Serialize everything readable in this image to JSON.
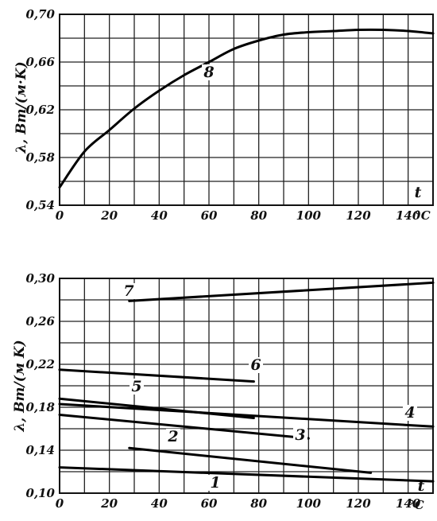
{
  "chart_data": [
    {
      "type": "line",
      "xlabel": "t",
      "xunit": "°C",
      "ylabel": "λ, Вт/(м·K)",
      "xlim": [
        0,
        150
      ],
      "ylim": [
        0.54,
        0.7
      ],
      "x_ticks": [
        "0",
        "20",
        "40",
        "60",
        "80",
        "100",
        "120",
        "140"
      ],
      "y_ticks": [
        "0,54",
        "0,58",
        "0,62",
        "0,66",
        "0,70"
      ],
      "grid": true,
      "series": [
        {
          "name": "8",
          "x": [
            0,
            10,
            20,
            30,
            40,
            50,
            60,
            70,
            80,
            90,
            100,
            110,
            120,
            130,
            140,
            150
          ],
          "y": [
            0.555,
            0.585,
            0.603,
            0.621,
            0.636,
            0.649,
            0.66,
            0.671,
            0.678,
            0.683,
            0.685,
            0.686,
            0.687,
            0.687,
            0.686,
            0.684
          ]
        }
      ]
    },
    {
      "type": "line",
      "xlabel": "t",
      "xunit": "°C",
      "ylabel": "λ, Вт/(м K)",
      "xlim": [
        0,
        150
      ],
      "ylim": [
        0.1,
        0.3
      ],
      "x_ticks": [
        "0",
        "20",
        "40",
        "60",
        "80",
        "100",
        "120",
        "140"
      ],
      "y_ticks": [
        "0,10",
        "0,14",
        "0,18",
        "0,22",
        "0,26",
        "0,30"
      ],
      "grid": true,
      "series": [
        {
          "name": "1",
          "x": [
            0,
            150
          ],
          "y": [
            0.124,
            0.111
          ]
        },
        {
          "name": "2",
          "x": [
            28,
            125
          ],
          "y": [
            0.142,
            0.119
          ]
        },
        {
          "name": "3",
          "x": [
            0,
            100
          ],
          "y": [
            0.173,
            0.151
          ]
        },
        {
          "name": "4",
          "x": [
            0,
            150
          ],
          "y": [
            0.183,
            0.162
          ]
        },
        {
          "name": "5",
          "x": [
            0,
            78
          ],
          "y": [
            0.188,
            0.17
          ]
        },
        {
          "name": "6",
          "x": [
            0,
            78
          ],
          "y": [
            0.215,
            0.204
          ]
        },
        {
          "name": "7",
          "x": [
            28,
            150
          ],
          "y": [
            0.279,
            0.296
          ]
        }
      ]
    }
  ]
}
